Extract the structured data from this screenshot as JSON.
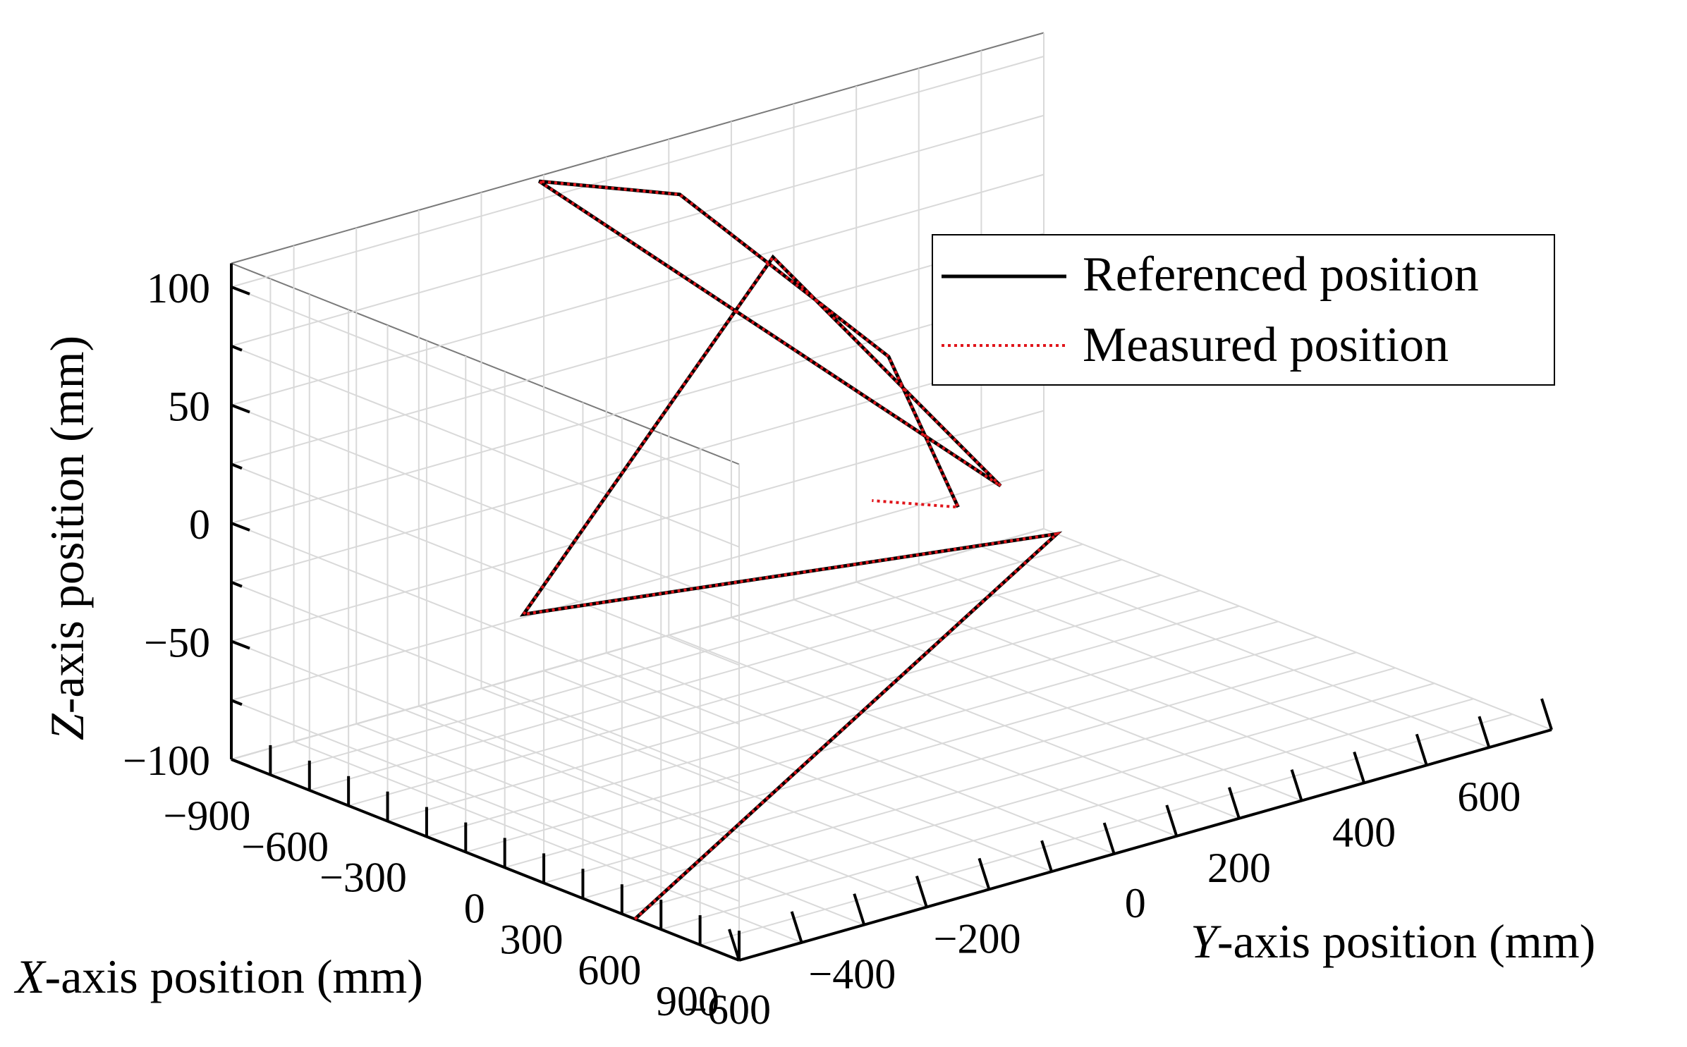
{
  "chart_data": {
    "type": "line",
    "projection": "3d",
    "axes": {
      "x": {
        "label_italic": "X",
        "label_rest": "-axis position (mm)",
        "range": [
          -1050,
          900
        ],
        "ticks": [
          -900,
          -600,
          -300,
          0,
          300,
          600,
          900
        ],
        "tick_labels": [
          "−900",
          "−600",
          "−300",
          "0",
          "300",
          "600",
          "900"
        ]
      },
      "y": {
        "label_italic": "Y",
        "label_rest": "-axis position (mm)",
        "range": [
          -600,
          700
        ],
        "ticks": [
          -600,
          -400,
          -200,
          0,
          200,
          400,
          600
        ],
        "tick_labels": [
          "−600",
          "−400",
          "−200",
          "0",
          "200",
          "400",
          "600"
        ]
      },
      "z": {
        "label_italic": "Z",
        "label_rest": "-axis position (mm)",
        "range": [
          -100,
          110
        ],
        "ticks": [
          -100,
          -50,
          0,
          50,
          100
        ],
        "tick_labels": [
          "−100",
          "−50",
          "0",
          "50",
          "100"
        ]
      }
    },
    "grid": true,
    "legend_position": "top-right",
    "series": [
      {
        "name": "Referenced position",
        "color": "#000000",
        "style": "solid",
        "points": [
          [
            500,
            -600,
            -100
          ],
          [
            -1000,
            700,
            -100
          ],
          [
            -1000,
            700,
            -100
          ],
          [
            -600,
            -320,
            -40
          ],
          [
            -350,
            -25,
            100
          ],
          [
            440,
            10,
            35
          ],
          [
            440,
            10,
            35
          ],
          [
            -1020,
            -120,
            110
          ],
          [
            -720,
            -20,
            110
          ],
          [
            -350,
            160,
            44
          ],
          [
            25,
            115,
            0
          ]
        ]
      },
      {
        "name": "Measured position",
        "color": "#e0151b",
        "style": "dotted",
        "points": [
          [
            500,
            -600,
            -100
          ],
          [
            -1000,
            700,
            -100
          ],
          [
            -1000,
            700,
            -100
          ],
          [
            -600,
            -320,
            -40
          ],
          [
            -350,
            -25,
            100
          ],
          [
            440,
            10,
            35
          ],
          [
            440,
            10,
            35
          ],
          [
            -1020,
            -120,
            110
          ],
          [
            -720,
            -20,
            110
          ],
          [
            -350,
            160,
            44
          ],
          [
            25,
            115,
            0
          ],
          [
            25,
            115,
            0
          ],
          [
            -150,
            50,
            0
          ]
        ]
      }
    ]
  },
  "legend": {
    "items": [
      {
        "label": "Referenced position",
        "color": "#000000",
        "style": "solid"
      },
      {
        "label": "Measured position",
        "color": "#e0151b",
        "style": "dotted"
      }
    ]
  }
}
